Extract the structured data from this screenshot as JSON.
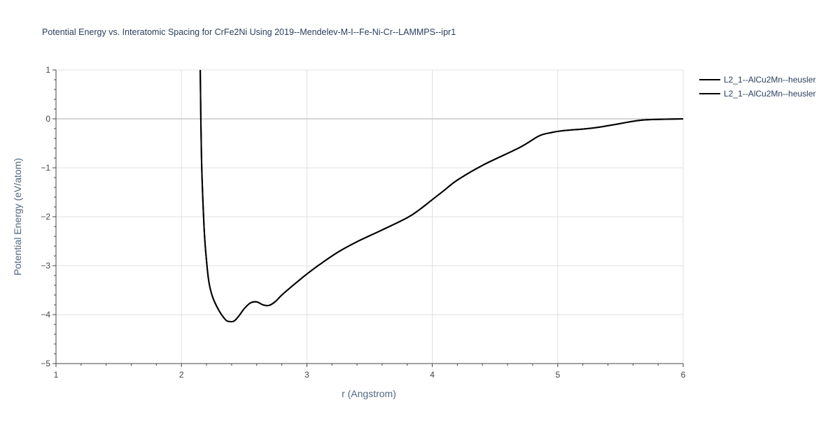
{
  "chart_data": {
    "type": "line",
    "title": "Potential Energy vs. Interatomic Spacing for CrFe2Ni Using 2019--Mendelev-M-I--Fe-Ni-Cr--LAMMPS--ipr1",
    "xlabel": "r (Angstrom)",
    "ylabel": "Potential Energy (eV/atom)",
    "xlim": [
      1,
      6
    ],
    "ylim": [
      -5,
      1
    ],
    "x_ticks": [
      "1",
      "2",
      "3",
      "4",
      "5",
      "6"
    ],
    "y_ticks": [
      "1",
      "0",
      "−1",
      "−2",
      "−3",
      "−4",
      "−5"
    ],
    "grid": true,
    "legend_position": "top-right",
    "series": [
      {
        "name": "L2_1--AlCu2Mn--heusler",
        "color": "#000000",
        "x": [
          2.15,
          2.16,
          2.18,
          2.2,
          2.22,
          2.25,
          2.3,
          2.35,
          2.38,
          2.42,
          2.46,
          2.5,
          2.55,
          2.6,
          2.65,
          2.7,
          2.75,
          2.8,
          2.9,
          3.0,
          3.1,
          3.25,
          3.4,
          3.6,
          3.8,
          3.9,
          4.0,
          4.1,
          4.2,
          4.4,
          4.7,
          4.85,
          4.95,
          5.05,
          5.3,
          5.6,
          5.7,
          5.8,
          6.0
        ],
        "y": [
          1.0,
          -0.8,
          -2.2,
          -2.9,
          -3.35,
          -3.65,
          -3.92,
          -4.1,
          -4.14,
          -4.13,
          -4.02,
          -3.88,
          -3.76,
          -3.74,
          -3.8,
          -3.81,
          -3.73,
          -3.6,
          -3.38,
          -3.17,
          -2.98,
          -2.72,
          -2.51,
          -2.27,
          -2.02,
          -1.85,
          -1.65,
          -1.45,
          -1.25,
          -0.95,
          -0.58,
          -0.35,
          -0.28,
          -0.24,
          -0.18,
          -0.05,
          -0.02,
          -0.01,
          0.0
        ]
      },
      {
        "name": "L2_1--AlCu2Mn--heusler",
        "color": "#000000",
        "x": [
          2.15,
          2.16,
          2.18,
          2.2,
          2.22,
          2.25,
          2.3,
          2.35,
          2.38,
          2.42,
          2.46,
          2.5,
          2.55,
          2.6,
          2.65,
          2.7,
          2.75,
          2.8,
          2.9,
          3.0,
          3.1,
          3.25,
          3.4,
          3.6,
          3.8,
          3.9,
          4.0,
          4.1,
          4.2,
          4.4,
          4.7,
          4.85,
          4.95,
          5.05,
          5.3,
          5.6,
          5.7,
          5.8,
          6.0
        ],
        "y": [
          1.0,
          -0.8,
          -2.2,
          -2.9,
          -3.35,
          -3.65,
          -3.92,
          -4.1,
          -4.14,
          -4.13,
          -4.02,
          -3.88,
          -3.76,
          -3.74,
          -3.8,
          -3.81,
          -3.73,
          -3.6,
          -3.38,
          -3.17,
          -2.98,
          -2.72,
          -2.51,
          -2.27,
          -2.02,
          -1.85,
          -1.65,
          -1.45,
          -1.25,
          -0.95,
          -0.58,
          -0.35,
          -0.28,
          -0.24,
          -0.18,
          -0.05,
          -0.02,
          -0.01,
          0.0
        ]
      }
    ]
  }
}
